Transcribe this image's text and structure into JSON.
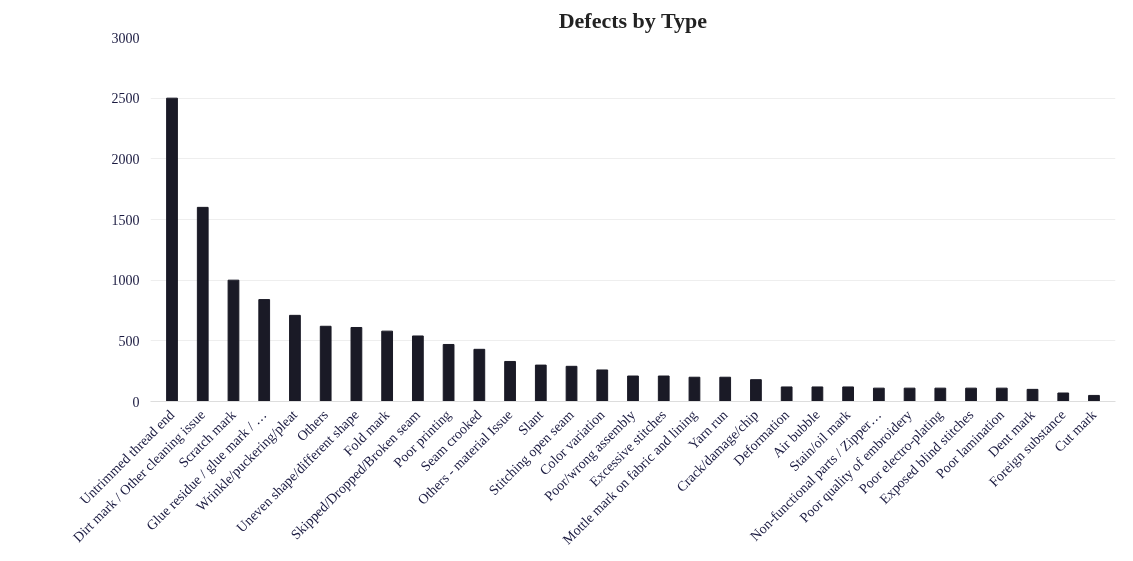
{
  "chart_data": {
    "type": "bar",
    "title": "Defects by Type",
    "categories": [
      "Untrimmed thread end",
      "Dirt mark / Other cleaning issue",
      "Scratch mark",
      "Glue residue / glue mark / …",
      "Wrinkle/puckering/pleat",
      "Others",
      "Uneven shape/different shape",
      "Fold mark",
      "Skipped/Dropped/Broken seam",
      "Poor printing",
      "Seam crooked",
      "Others - material Issue",
      "Slant",
      "Stitching open seam",
      "Color variation",
      "Poor/wrong assembly",
      "Excessive stitches",
      "Mottle mark on fabric and lining",
      "Yarn run",
      "Crack/damage/chip",
      "Deformation",
      "Air bubble",
      "Stain/oil mark",
      "Non-functional parts / Zipper…",
      "Poor quality of embroidery",
      "Poor electro-plating",
      "Exposed blind stitches",
      "Poor lamination",
      "Dent mark",
      "Foreign substance",
      "Cut mark"
    ],
    "values": [
      2500,
      1600,
      1000,
      840,
      710,
      620,
      610,
      580,
      540,
      470,
      430,
      330,
      300,
      290,
      260,
      210,
      210,
      200,
      200,
      180,
      120,
      120,
      120,
      110,
      110,
      110,
      110,
      110,
      100,
      70,
      50
    ],
    "color": "#1a1a26",
    "ylim": [
      0,
      3000
    ],
    "yticks": [
      0,
      500,
      1000,
      1500,
      2000,
      2500,
      3000
    ],
    "grid": "y"
  }
}
